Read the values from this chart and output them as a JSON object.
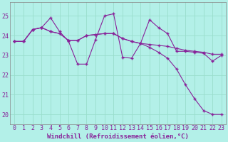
{
  "background_color": "#b3f0e8",
  "line_color": "#882299",
  "grid_color": "#99ddcc",
  "xlabel": "Windchill (Refroidissement éolien,°C)",
  "xlabel_fontsize": 6.5,
  "tick_fontsize": 6,
  "ylim": [
    19.5,
    25.7
  ],
  "xlim": [
    -0.5,
    23.5
  ],
  "yticks": [
    20,
    21,
    22,
    23,
    24,
    25
  ],
  "xticks": [
    0,
    1,
    2,
    3,
    4,
    5,
    6,
    7,
    8,
    9,
    10,
    11,
    12,
    13,
    14,
    15,
    16,
    17,
    18,
    19,
    20,
    21,
    22,
    23
  ],
  "series": [
    [
      23.7,
      23.7,
      24.3,
      24.4,
      24.9,
      24.2,
      23.7,
      22.55,
      22.55,
      23.8,
      25.0,
      25.1,
      22.9,
      22.85,
      23.6,
      24.8,
      24.4,
      24.1,
      23.2,
      23.2,
      23.15,
      23.1,
      22.7,
      23.0
    ],
    [
      23.7,
      23.7,
      24.3,
      24.4,
      24.2,
      24.1,
      23.75,
      23.75,
      24.0,
      24.05,
      24.1,
      24.1,
      23.85,
      23.7,
      23.6,
      23.55,
      23.5,
      23.45,
      23.35,
      23.25,
      23.2,
      23.15,
      23.05,
      23.05
    ],
    [
      23.7,
      23.7,
      24.3,
      24.4,
      24.2,
      24.1,
      23.75,
      23.75,
      24.0,
      24.05,
      24.1,
      24.1,
      23.85,
      23.7,
      23.6,
      23.4,
      23.15,
      22.85,
      22.3,
      21.5,
      20.8,
      20.2,
      20.0,
      20.0
    ]
  ]
}
